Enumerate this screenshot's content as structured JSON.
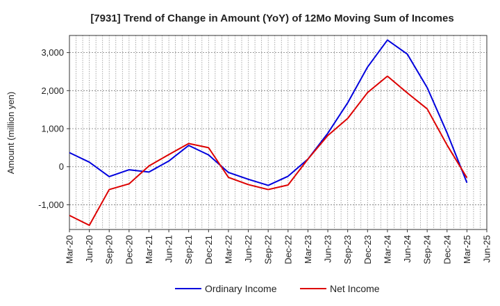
{
  "chart_data": {
    "type": "line",
    "title": "[7931]  Trend of Change in Amount (YoY) of 12Mo Moving Sum of Incomes",
    "xlabel": "",
    "ylabel": "Amount (million yen)",
    "categories": [
      "Mar-20",
      "Jun-20",
      "Sep-20",
      "Dec-20",
      "Mar-21",
      "Jun-21",
      "Sep-21",
      "Dec-21",
      "Mar-22",
      "Jun-22",
      "Sep-22",
      "Dec-22",
      "Mar-23",
      "Jun-23",
      "Sep-23",
      "Dec-23",
      "Mar-24",
      "Jun-24",
      "Sep-24",
      "Dec-24",
      "Mar-25",
      "Jun-25"
    ],
    "ylim": [
      -1650,
      3450
    ],
    "yticks": [
      3000,
      2000,
      1000,
      0,
      -1000
    ],
    "ytick_labels": [
      "3,000",
      "2,000",
      "1,000",
      "0",
      "-1,000"
    ],
    "grid": true,
    "legend_position": "bottom",
    "series": [
      {
        "name": "Ordinary Income",
        "color": "#0000dd",
        "values": [
          370,
          120,
          -260,
          -80,
          -140,
          150,
          560,
          310,
          -150,
          -330,
          -490,
          -250,
          200,
          880,
          1680,
          2620,
          3330,
          2960,
          2080,
          890,
          -420,
          null
        ]
      },
      {
        "name": "Net Income",
        "color": "#dd0000",
        "values": [
          -1280,
          -1540,
          -600,
          -450,
          20,
          320,
          610,
          500,
          -280,
          -470,
          -600,
          -480,
          200,
          820,
          1270,
          1950,
          2380,
          1940,
          1520,
          570,
          -290,
          null
        ]
      }
    ]
  }
}
